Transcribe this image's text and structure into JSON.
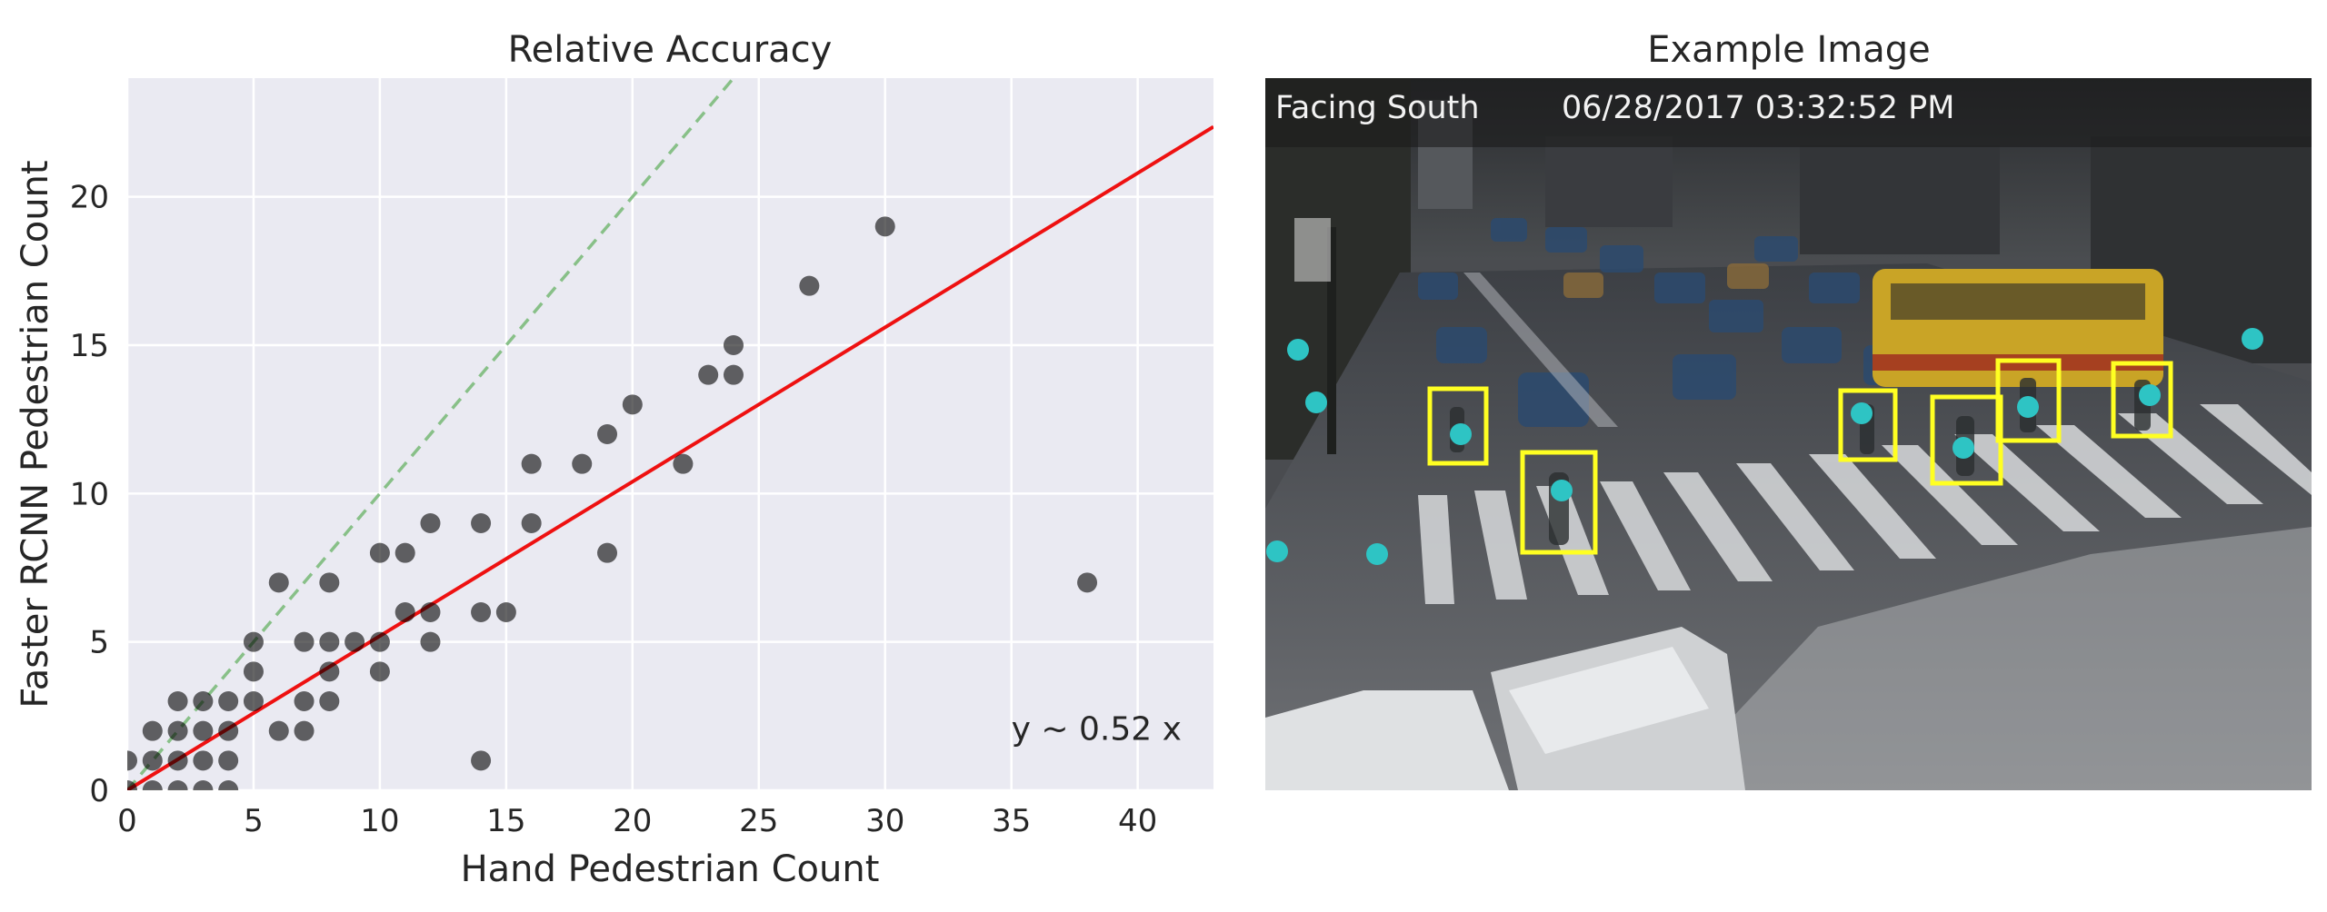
{
  "chart_data": [
    {
      "type": "scatter",
      "title": "Relative Accuracy",
      "xlabel": "Hand Pedestrian Count",
      "ylabel": "Faster RCNN Pedestrian Count",
      "xlim": [
        0,
        43
      ],
      "ylim": [
        0,
        24
      ],
      "xticks": [
        0,
        5,
        10,
        15,
        20,
        25,
        30,
        35,
        40
      ],
      "yticks": [
        0,
        5,
        10,
        15,
        20
      ],
      "grid": true,
      "background": "#eaeaf2",
      "point_color": "#000000",
      "point_alpha": 0.6,
      "points": [
        {
          "x": 0,
          "y": 0
        },
        {
          "x": 0,
          "y": 1
        },
        {
          "x": 1,
          "y": 0
        },
        {
          "x": 1,
          "y": 1
        },
        {
          "x": 1,
          "y": 2
        },
        {
          "x": 2,
          "y": 0
        },
        {
          "x": 2,
          "y": 1
        },
        {
          "x": 2,
          "y": 2
        },
        {
          "x": 2,
          "y": 3
        },
        {
          "x": 3,
          "y": 0
        },
        {
          "x": 3,
          "y": 1
        },
        {
          "x": 3,
          "y": 2
        },
        {
          "x": 3,
          "y": 3
        },
        {
          "x": 4,
          "y": 0
        },
        {
          "x": 4,
          "y": 1
        },
        {
          "x": 4,
          "y": 2
        },
        {
          "x": 4,
          "y": 3
        },
        {
          "x": 5,
          "y": 3
        },
        {
          "x": 5,
          "y": 4
        },
        {
          "x": 5,
          "y": 5
        },
        {
          "x": 6,
          "y": 2
        },
        {
          "x": 6,
          "y": 7
        },
        {
          "x": 7,
          "y": 2
        },
        {
          "x": 7,
          "y": 3
        },
        {
          "x": 7,
          "y": 5
        },
        {
          "x": 8,
          "y": 3
        },
        {
          "x": 8,
          "y": 4
        },
        {
          "x": 8,
          "y": 5
        },
        {
          "x": 8,
          "y": 7
        },
        {
          "x": 9,
          "y": 5
        },
        {
          "x": 10,
          "y": 4
        },
        {
          "x": 10,
          "y": 5
        },
        {
          "x": 10,
          "y": 8
        },
        {
          "x": 11,
          "y": 6
        },
        {
          "x": 11,
          "y": 8
        },
        {
          "x": 12,
          "y": 5
        },
        {
          "x": 12,
          "y": 6
        },
        {
          "x": 12,
          "y": 9
        },
        {
          "x": 14,
          "y": 1
        },
        {
          "x": 14,
          "y": 6
        },
        {
          "x": 14,
          "y": 9
        },
        {
          "x": 15,
          "y": 6
        },
        {
          "x": 16,
          "y": 9
        },
        {
          "x": 16,
          "y": 11
        },
        {
          "x": 18,
          "y": 11
        },
        {
          "x": 19,
          "y": 8
        },
        {
          "x": 19,
          "y": 12
        },
        {
          "x": 20,
          "y": 13
        },
        {
          "x": 22,
          "y": 11
        },
        {
          "x": 23,
          "y": 14
        },
        {
          "x": 24,
          "y": 14
        },
        {
          "x": 24,
          "y": 15
        },
        {
          "x": 27,
          "y": 17
        },
        {
          "x": 30,
          "y": 19
        },
        {
          "x": 38,
          "y": 7
        }
      ],
      "lines": [
        {
          "label": "y ~ 0.52 x",
          "slope": 0.52,
          "color": "#ee1111",
          "style": "solid"
        },
        {
          "slope": 1.0,
          "color": "#88c088",
          "style": "dashed"
        }
      ],
      "annotation": {
        "text": "y ~ 0.52 x",
        "x": 35,
        "y": 2
      }
    }
  ],
  "image_panel": {
    "title": "Example Image",
    "overlay_left": "Facing South",
    "overlay_right": "06/28/2017 03:32:52 PM",
    "box_color": "#ffff22",
    "dot_color": "#2ec4c4"
  }
}
